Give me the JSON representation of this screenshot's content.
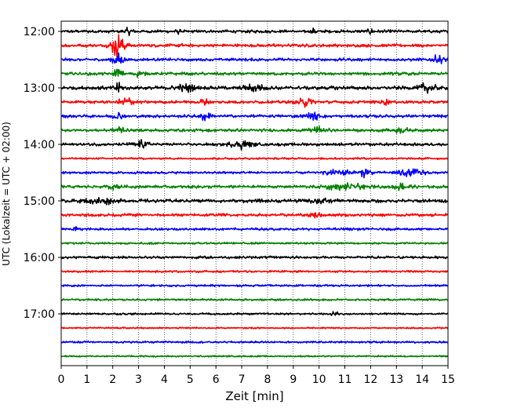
{
  "chart_data": {
    "type": "line",
    "title": "",
    "xlabel": "Zeit  [min]",
    "ylabel": "UTC (Lokalzeit = UTC + 02:00)",
    "xlim": [
      0,
      15
    ],
    "x_ticks": [
      0,
      1,
      2,
      3,
      4,
      5,
      6,
      7,
      8,
      9,
      10,
      11,
      12,
      13,
      14,
      15
    ],
    "x_tick_labels": [
      "0",
      "1",
      "2",
      "3",
      "4",
      "5",
      "6",
      "7",
      "8",
      "9",
      "10",
      "11",
      "12",
      "13",
      "14",
      "15"
    ],
    "y_tick_labels": [
      "12:00",
      "13:00",
      "14:00",
      "15:00",
      "16:00",
      "17:00"
    ],
    "y_tick_trace_index": [
      0,
      4,
      8,
      12,
      16,
      20
    ],
    "grid": "vertical dotted at each minute",
    "trace_colors": [
      "#000000",
      "#ff0000",
      "#0000ff",
      "#008000"
    ],
    "series": [
      {
        "start": "12:00",
        "amplitude": 0.3,
        "bursts": [
          [
            2.6,
            0.5,
            0.2
          ],
          [
            4.5,
            0.4,
            0.1
          ],
          [
            9.8,
            0.6,
            0.1
          ],
          [
            12.0,
            0.5,
            0.1
          ]
        ]
      },
      {
        "start": "12:15",
        "amplitude": 0.3,
        "bursts": [
          [
            2.2,
            2.5,
            0.25
          ],
          [
            4.6,
            0.4,
            0.1
          ],
          [
            8.2,
            0.4,
            0.1
          ]
        ]
      },
      {
        "start": "12:30",
        "amplitude": 0.3,
        "bursts": [
          [
            2.2,
            1.2,
            0.2
          ],
          [
            14.6,
            0.7,
            0.25
          ]
        ]
      },
      {
        "start": "12:45",
        "amplitude": 0.3,
        "bursts": [
          [
            2.2,
            1.2,
            0.15
          ],
          [
            3.0,
            0.5,
            0.2
          ]
        ]
      },
      {
        "start": "13:00",
        "amplitude": 0.35,
        "bursts": [
          [
            2.2,
            1.0,
            0.15
          ],
          [
            4.8,
            0.6,
            0.4
          ],
          [
            7.5,
            0.5,
            0.4
          ],
          [
            14.2,
            0.8,
            0.3
          ]
        ]
      },
      {
        "start": "13:15",
        "amplitude": 0.3,
        "bursts": [
          [
            2.5,
            0.8,
            0.3
          ],
          [
            5.5,
            0.6,
            0.2
          ],
          [
            9.5,
            0.8,
            0.3
          ],
          [
            12.5,
            0.6,
            0.2
          ]
        ]
      },
      {
        "start": "13:30",
        "amplitude": 0.3,
        "bursts": [
          [
            2.2,
            0.8,
            0.2
          ],
          [
            5.6,
            0.8,
            0.2
          ],
          [
            9.8,
            0.6,
            0.3
          ]
        ]
      },
      {
        "start": "13:45",
        "amplitude": 0.3,
        "bursts": [
          [
            2.3,
            0.8,
            0.2
          ],
          [
            10.0,
            0.5,
            0.3
          ],
          [
            13.2,
            0.5,
            0.3
          ]
        ]
      },
      {
        "start": "14:00",
        "amplitude": 0.3,
        "bursts": [
          [
            3.1,
            0.6,
            0.3
          ],
          [
            7.0,
            0.8,
            0.4
          ]
        ]
      },
      {
        "start": "14:15",
        "amplitude": 0.2,
        "bursts": []
      },
      {
        "start": "14:30",
        "amplitude": 0.25,
        "bursts": [
          [
            10.8,
            0.6,
            0.5
          ],
          [
            11.8,
            0.8,
            0.2
          ],
          [
            13.5,
            0.8,
            0.5
          ]
        ]
      },
      {
        "start": "14:45",
        "amplitude": 0.3,
        "bursts": [
          [
            2.1,
            0.6,
            0.2
          ],
          [
            11.0,
            0.5,
            0.8
          ],
          [
            13.2,
            0.6,
            0.3
          ]
        ]
      },
      {
        "start": "15:00",
        "amplitude": 0.35,
        "bursts": [
          [
            1.5,
            0.6,
            0.5
          ],
          [
            10.0,
            0.5,
            0.3
          ]
        ]
      },
      {
        "start": "15:15",
        "amplitude": 0.3,
        "bursts": [
          [
            9.8,
            0.5,
            0.2
          ]
        ]
      },
      {
        "start": "15:30",
        "amplitude": 0.25,
        "bursts": [
          [
            0.5,
            0.5,
            0.1
          ]
        ]
      },
      {
        "start": "15:45",
        "amplitude": 0.2,
        "bursts": []
      },
      {
        "start": "16:00",
        "amplitude": 0.25,
        "bursts": []
      },
      {
        "start": "16:15",
        "amplitude": 0.2,
        "bursts": []
      },
      {
        "start": "16:30",
        "amplitude": 0.2,
        "bursts": []
      },
      {
        "start": "16:45",
        "amplitude": 0.2,
        "bursts": []
      },
      {
        "start": "17:00",
        "amplitude": 0.2,
        "bursts": [
          [
            10.6,
            0.3,
            0.2
          ]
        ]
      },
      {
        "start": "17:15",
        "amplitude": 0.15,
        "bursts": []
      },
      {
        "start": "17:30",
        "amplitude": 0.2,
        "bursts": []
      },
      {
        "start": "17:45",
        "amplitude": 0.15,
        "bursts": []
      }
    ]
  }
}
